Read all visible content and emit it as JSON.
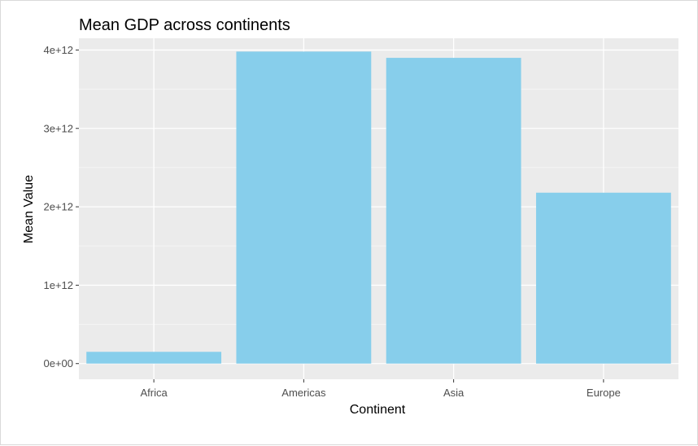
{
  "chart_data": {
    "type": "bar",
    "title": "Mean GDP across continents",
    "xlabel": "Continent",
    "ylabel": "Mean Value",
    "categories": [
      "Africa",
      "Americas",
      "Asia",
      "Europe"
    ],
    "values": [
      150000000000.0,
      3980000000000.0,
      3900000000000.0,
      2180000000000.0
    ],
    "ylim": [
      -200000000000.0,
      4150000000000.0
    ],
    "yticks": [
      0,
      1000000000000.0,
      2000000000000.0,
      3000000000000.0,
      4000000000000.0
    ],
    "ytick_labels": [
      "0e+00",
      "1e+12",
      "2e+12",
      "3e+12",
      "4e+12"
    ],
    "grid": true,
    "colors": {
      "bar": "#87CEEB",
      "panel": "#EBEBEB",
      "grid_major": "#FFFFFF",
      "grid_minor": "#F5F5F5"
    }
  }
}
